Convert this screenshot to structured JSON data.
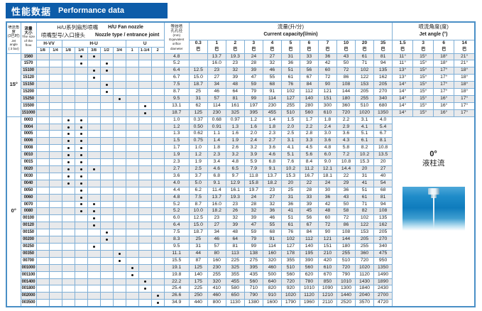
{
  "title": {
    "cn": "性能数据",
    "en": "Performance data"
  },
  "colors": {
    "title_bg": "#0d5ca9",
    "grid": "#7fafd6",
    "frame": "#4a8fc6",
    "stripe": "#e8e9eb",
    "image_blue": "#0f7cbd"
  },
  "header": {
    "corner": {
      "cn1": "喷流角度",
      "cn2": "(3巴时)",
      "en1": "Jet angle",
      "en2": "( 3 bar)"
    },
    "flow": {
      "cn1": "流量",
      "cn2": "大小",
      "en1": "The size",
      "en2": "of the",
      "en3": "flow"
    },
    "nozzle_group": {
      "cn1": "H/U系列扇形喷嘴",
      "en1": "H/U  Fan nozzle",
      "cn2": "喷嘴型号/入口接头",
      "en2": "Nozzle type / entrance joint"
    },
    "series": [
      {
        "label": "H-VV",
        "joints": [
          "1/8",
          "1/4"
        ]
      },
      {
        "label": "H-U",
        "joints": [
          "1/8",
          "1/4",
          "3/8",
          "1/2",
          "3/4"
        ]
      },
      {
        "label": "U",
        "joints": [
          "1",
          "1-1/4",
          "2"
        ]
      }
    ],
    "orifice": {
      "cn1": "等效喷",
      "cn2": "孔孔径",
      "mm": "(mm)",
      "en1": "Equivalent",
      "en2": "orifice",
      "en3": "diameter"
    },
    "capacity_group": {
      "cn": "流量(升/分)",
      "en": "Current capacity(l/min)"
    },
    "capacity_pressures": [
      "0.3",
      "1",
      "2",
      "3",
      "4",
      "5",
      "6",
      "7",
      "10",
      "20",
      "35"
    ],
    "bar_unit": "巴",
    "angle_group": {
      "cn": "喷流角度(度)",
      "en": "Jet angle (°)"
    },
    "angle_pressures": [
      "1.5",
      "3",
      "6",
      "14"
    ]
  },
  "sections": [
    {
      "angle_label": "15°",
      "rows": [
        {
          "code": "1560",
          "dots": [
            3,
            4
          ],
          "orifice": "4.8",
          "cap": [
            "",
            "13.7",
            "19.3",
            "24",
            "27",
            "31",
            "33",
            "36",
            "43",
            "61",
            "81"
          ],
          "angles": [
            "11°",
            "15°",
            "18°",
            "21°"
          ]
        },
        {
          "code": "1570",
          "dots": [
            3,
            5
          ],
          "orifice": "5.2",
          "cap": [
            "",
            "16.0",
            "23",
            "28",
            "32",
            "36",
            "39",
            "42",
            "50",
            "71",
            "94"
          ],
          "angles": [
            "11°",
            "15°",
            "18°",
            "21°"
          ]
        },
        {
          "code": "15100",
          "dots": [
            4,
            5
          ],
          "orifice": "6.4",
          "cap": [
            "12.5",
            "23",
            "32",
            "39",
            "46",
            "51",
            "56",
            "60",
            "72",
            "102",
            "135"
          ],
          "angles": [
            "13°",
            "15°",
            "17°",
            "18°"
          ]
        },
        {
          "code": "15120",
          "dots": [
            4
          ],
          "orifice": "6.7",
          "cap": [
            "15.0",
            "27",
            "39",
            "47",
            "55",
            "61",
            "67",
            "72",
            "86",
            "122",
            "162"
          ],
          "angles": [
            "13°",
            "15°",
            "17°",
            "18°"
          ]
        },
        {
          "code": "15150",
          "dots": [
            5
          ],
          "orifice": "7.5",
          "cap": [
            "18.7",
            "34",
            "48",
            "59",
            "68",
            "76",
            "84",
            "90",
            "108",
            "153",
            "205"
          ],
          "angles": [
            "14°",
            "15°",
            "17°",
            "18°"
          ]
        },
        {
          "code": "15200",
          "dots": [
            5
          ],
          "orifice": "8.7",
          "cap": [
            "25",
            "46",
            "64",
            "79",
            "91",
            "102",
            "112",
            "121",
            "144",
            "205",
            "270"
          ],
          "angles": [
            "14°",
            "15°",
            "17°",
            "18°"
          ]
        },
        {
          "code": "15250",
          "dots": [
            6
          ],
          "orifice": "9.5",
          "cap": [
            "31",
            "57",
            "81",
            "99",
            "114",
            "127",
            "140",
            "151",
            "180",
            "255",
            "340"
          ],
          "angles": [
            "14°",
            "15°",
            "16°",
            "17°"
          ]
        },
        {
          "code": "15500",
          "dots": [
            8
          ],
          "orifice": "13.1",
          "cap": [
            "62",
            "114",
            "161",
            "197",
            "230",
            "255",
            "280",
            "300",
            "360",
            "510",
            "680"
          ],
          "angles": [
            "14°",
            "15°",
            "16°",
            "17°"
          ]
        },
        {
          "code": "151000",
          "dots": [
            8
          ],
          "orifice": "18.7",
          "cap": [
            "125",
            "230",
            "325",
            "395",
            "455",
            "510",
            "560",
            "610",
            "720",
            "1020",
            "1350"
          ],
          "angles": [
            "14°",
            "15°",
            "16°",
            "17°"
          ]
        }
      ]
    },
    {
      "angle_label": "0°",
      "stream": {
        "deg": "0°",
        "name": "液柱流"
      },
      "rows": [
        {
          "code": "0003",
          "dots": [
            2,
            3
          ],
          "orifice": "1.0",
          "cap": [
            "0.37",
            "0.68",
            "0.97",
            "1.2",
            "1.4",
            "1.5",
            "1.7",
            "1.8",
            "2.2",
            "3.1",
            "4.0"
          ]
        },
        {
          "code": "0004",
          "dots": [
            2,
            3
          ],
          "orifice": "1.2",
          "cap": [
            "0.50",
            "0.91",
            "1.3",
            "1.6",
            "1.8",
            "2.0",
            "2.2",
            "2.4",
            "2.9",
            "4.1",
            "5.4"
          ]
        },
        {
          "code": "0005",
          "dots": [
            2,
            3
          ],
          "orifice": "1.3",
          "cap": [
            "0.62",
            "1.1",
            "1.6",
            "2.0",
            "2.3",
            "2.5",
            "2.8",
            "3.0",
            "3.6",
            "5.1",
            "6.7"
          ]
        },
        {
          "code": "0006",
          "dots": [
            2,
            3
          ],
          "orifice": "1.5",
          "cap": [
            "0.75",
            "1.4",
            "1.9",
            "2.4",
            "2.7",
            "3.1",
            "3.3",
            "3.6",
            "4.3",
            "6.1",
            "8.1"
          ]
        },
        {
          "code": "0008",
          "dots": [
            2,
            3
          ],
          "orifice": "1.7",
          "cap": [
            "1.0",
            "1.8",
            "2.6",
            "3.2",
            "3.6",
            "4.1",
            "4.5",
            "4.8",
            "5.8",
            "8.2",
            "10.8"
          ]
        },
        {
          "code": "0010",
          "dots": [
            2,
            3
          ],
          "orifice": "1.9",
          "cap": [
            "1.2",
            "2.3",
            "3.2",
            "3.9",
            "4.6",
            "5.1",
            "5.6",
            "6.0",
            "7.2",
            "10.2",
            "13.5"
          ]
        },
        {
          "code": "0015",
          "dots": [
            2,
            3
          ],
          "orifice": "2.3",
          "cap": [
            "1.9",
            "3.4",
            "4.8",
            "5.9",
            "6.8",
            "7.6",
            "8.4",
            "9.0",
            "10.8",
            "15.3",
            "20"
          ]
        },
        {
          "code": "0020",
          "dots": [
            2,
            3,
            4
          ],
          "orifice": "2.7",
          "cap": [
            "2.5",
            "4.6",
            "6.5",
            "7.9",
            "9.1",
            "10.2",
            "11.2",
            "12.1",
            "14.4",
            "20",
            "27"
          ]
        },
        {
          "code": "0030",
          "dots": [
            2,
            3
          ],
          "orifice": "3.6",
          "cap": [
            "3.7",
            "6.8",
            "9.7",
            "11.8",
            "13.7",
            "15.3",
            "16.7",
            "18.1",
            "22",
            "31",
            "40"
          ]
        },
        {
          "code": "0040",
          "dots": [
            2,
            3
          ],
          "orifice": "4.0",
          "cap": [
            "5.0",
            "9.1",
            "12.9",
            "15.8",
            "18.2",
            "20",
            "22",
            "24",
            "29",
            "41",
            "54"
          ]
        },
        {
          "code": "0050",
          "dots": [
            3
          ],
          "orifice": "4.4",
          "cap": [
            "6.2",
            "11.4",
            "16.1",
            "19.7",
            "23",
            "25",
            "28",
            "30",
            "36",
            "51",
            "68"
          ]
        },
        {
          "code": "0060",
          "dots": [
            3
          ],
          "orifice": "4.8",
          "cap": [
            "7.5",
            "13.7",
            "19.3",
            "24",
            "27",
            "31",
            "33",
            "36",
            "43",
            "61",
            "81"
          ]
        },
        {
          "code": "0070",
          "dots": [
            3,
            4
          ],
          "orifice": "5.2",
          "cap": [
            "8.7",
            "16.0",
            "23",
            "28",
            "32",
            "36",
            "39",
            "42",
            "50",
            "71",
            "94"
          ]
        },
        {
          "code": "0080",
          "dots": [
            3,
            4
          ],
          "orifice": "5.2",
          "cap": [
            "10.0",
            "18.2",
            "26",
            "32",
            "36",
            "41",
            "45",
            "48",
            "58",
            "82",
            "108"
          ]
        },
        {
          "code": "00100",
          "dots": [
            4
          ],
          "orifice": "6.0",
          "cap": [
            "12.5",
            "23",
            "32",
            "39",
            "46",
            "51",
            "56",
            "60",
            "72",
            "102",
            "135"
          ]
        },
        {
          "code": "00120",
          "dots": [
            4
          ],
          "orifice": "6.4",
          "cap": [
            "15.0",
            "27",
            "39",
            "47",
            "55",
            "61",
            "67",
            "72",
            "86",
            "122",
            "162"
          ]
        },
        {
          "code": "00150",
          "dots": [
            5
          ],
          "orifice": "7.5",
          "cap": [
            "18.7",
            "34",
            "48",
            "59",
            "68",
            "76",
            "84",
            "90",
            "108",
            "153",
            "205"
          ]
        },
        {
          "code": "00200",
          "dots": [
            5
          ],
          "orifice": "8.3",
          "cap": [
            "25",
            "46",
            "64",
            "79",
            "91",
            "102",
            "112",
            "121",
            "144",
            "205",
            "270"
          ]
        },
        {
          "code": "00250",
          "dots": [
            4
          ],
          "orifice": "9.5",
          "cap": [
            "31",
            "57",
            "81",
            "99",
            "114",
            "127",
            "140",
            "151",
            "180",
            "255",
            "340"
          ]
        },
        {
          "code": "00350",
          "dots": [
            6
          ],
          "orifice": "11.1",
          "cap": [
            "44",
            "80",
            "113",
            "138",
            "160",
            "178",
            "195",
            "210",
            "255",
            "360",
            "475"
          ]
        },
        {
          "code": "00700",
          "dots": [
            6
          ],
          "orifice": "15.5",
          "cap": [
            "87",
            "160",
            "225",
            "275",
            "320",
            "355",
            "390",
            "420",
            "510",
            "720",
            "950"
          ]
        },
        {
          "code": "001000",
          "dots": [
            7
          ],
          "orifice": "19.1",
          "cap": [
            "125",
            "230",
            "325",
            "395",
            "460",
            "510",
            "560",
            "610",
            "720",
            "1020",
            "1350"
          ]
        },
        {
          "code": "001100",
          "dots": [
            7
          ],
          "orifice": "19.8",
          "cap": [
            "140",
            "255",
            "355",
            "435",
            "500",
            "560",
            "620",
            "670",
            "790",
            "1120",
            "1490"
          ]
        },
        {
          "code": "001400",
          "dots": [
            8
          ],
          "orifice": "22.2",
          "cap": [
            "175",
            "320",
            "455",
            "560",
            "640",
            "720",
            "780",
            "850",
            "1010",
            "1430",
            "1890"
          ]
        },
        {
          "code": "001800",
          "dots": [
            8
          ],
          "orifice": "25.4",
          "cap": [
            "225",
            "410",
            "580",
            "710",
            "820",
            "920",
            "1010",
            "1090",
            "1300",
            "1840",
            "2430"
          ]
        },
        {
          "code": "002000",
          "dots": [
            9
          ],
          "orifice": "26.6",
          "cap": [
            "250",
            "460",
            "650",
            "790",
            "910",
            "1020",
            "1120",
            "1210",
            "1440",
            "2040",
            "2700"
          ]
        },
        {
          "code": "003500",
          "dots": [
            9
          ],
          "orifice": "34.9",
          "cap": [
            "440",
            "800",
            "1130",
            "1380",
            "1600",
            "1790",
            "1960",
            "2110",
            "2520",
            "3570",
            "4720"
          ]
        }
      ]
    }
  ]
}
